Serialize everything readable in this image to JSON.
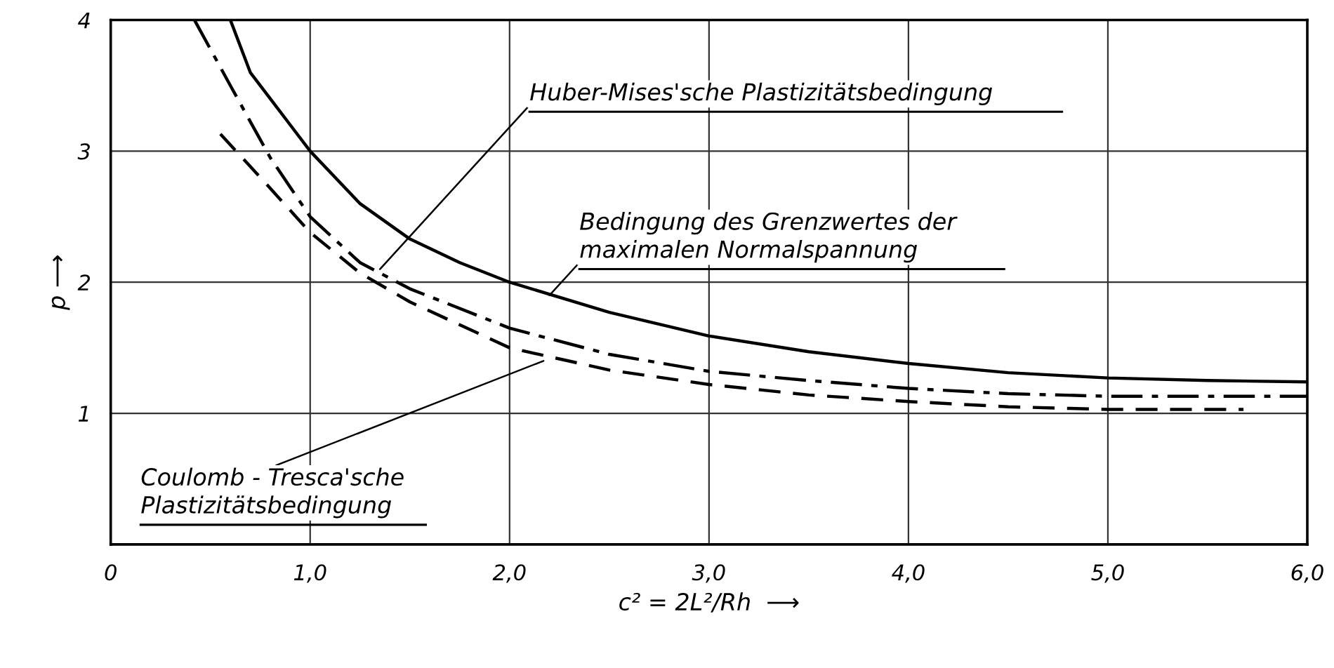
{
  "chart_data": {
    "type": "line",
    "xlabel": "c² = 2L²/Rh  ⟶",
    "ylabel": "p ⟶",
    "xlim": [
      0,
      6
    ],
    "ylim": [
      0,
      4
    ],
    "xticks": [
      {
        "value": 0,
        "label": "0"
      },
      {
        "value": 1,
        "label": "1,0"
      },
      {
        "value": 2,
        "label": "2,0"
      },
      {
        "value": 3,
        "label": "3,0"
      },
      {
        "value": 4,
        "label": "4,0"
      },
      {
        "value": 5,
        "label": "5,0"
      },
      {
        "value": 6,
        "label": "6,0"
      }
    ],
    "yticks": [
      1,
      2,
      3,
      4
    ],
    "grid": true,
    "legend": false,
    "series": [
      {
        "color": "#000000",
        "line_style": "solid",
        "x": [
          0.6,
          0.7,
          0.8,
          0.9,
          1.0,
          1.25,
          1.5,
          1.75,
          2.0,
          2.5,
          3.0,
          3.5,
          4.0,
          4.5,
          5.0,
          5.5,
          6.0
        ],
        "values": [
          4.0,
          3.6,
          3.4,
          3.2,
          3.0,
          2.6,
          2.33,
          2.15,
          2.0,
          1.77,
          1.59,
          1.47,
          1.38,
          1.31,
          1.27,
          1.25,
          1.24
        ]
      },
      {
        "color": "#000000",
        "line_style": "dashdot",
        "x": [
          0.42,
          0.6,
          0.8,
          1.0,
          1.25,
          1.5,
          2.0,
          2.5,
          3.0,
          3.5,
          4.0,
          4.5,
          5.0,
          6.0
        ],
        "values": [
          4.0,
          3.5,
          2.95,
          2.5,
          2.15,
          1.95,
          1.65,
          1.45,
          1.32,
          1.25,
          1.19,
          1.15,
          1.13,
          1.13
        ]
      },
      {
        "color": "#000000",
        "line_style": "dashed",
        "x": [
          0.55,
          0.75,
          1.0,
          1.25,
          1.5,
          2.0,
          2.5,
          3.0,
          3.5,
          4.0,
          4.5,
          5.0,
          5.68
        ],
        "values": [
          3.13,
          2.8,
          2.38,
          2.07,
          1.85,
          1.5,
          1.33,
          1.22,
          1.14,
          1.09,
          1.05,
          1.03,
          1.03
        ]
      }
    ],
    "annotations": [
      {
        "text": "Huber-Mises'sche Plastizitätsbedingung",
        "x": 1.35,
        "y": 2.1
      },
      {
        "text": "Bedingung des Grenzwertes der\nmaximalen Normalspannung",
        "x": 2.2,
        "y": 1.9
      },
      {
        "text": "Coulomb - Tresca'sche\nPlastizitätsbedingung",
        "x": 2.17,
        "y": 1.4
      }
    ]
  }
}
